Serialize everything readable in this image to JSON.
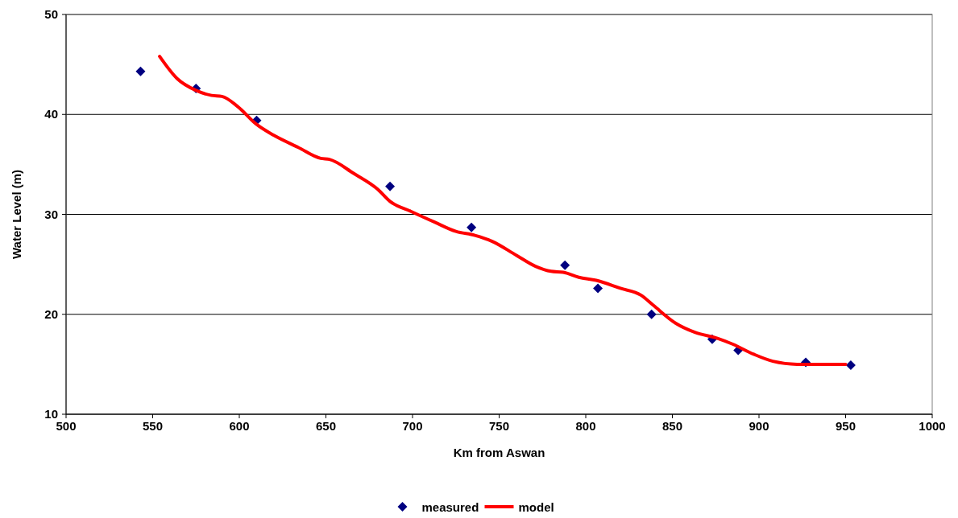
{
  "chart_data": {
    "type": "scatter",
    "xlabel": "Km from Aswan",
    "ylabel": "Water Level (m)",
    "xlim": [
      500,
      1000
    ],
    "xticks": [
      500,
      550,
      600,
      650,
      700,
      750,
      800,
      850,
      900,
      950,
      1000
    ],
    "ylim": [
      10,
      50
    ],
    "yticks": [
      10,
      20,
      30,
      40,
      50
    ],
    "grid": "y",
    "legend": "bottom",
    "marker": "diamond",
    "series": [
      {
        "name": "measured",
        "color": "#000080",
        "x": [
          543,
          575,
          610,
          687,
          734,
          788,
          807,
          838,
          873,
          888,
          927,
          953
        ],
        "values": [
          44.3,
          42.6,
          39.4,
          32.8,
          28.7,
          24.9,
          22.6,
          20.0,
          17.5,
          16.4,
          15.2,
          14.9
        ]
      },
      {
        "name": "model",
        "type": "line",
        "color": "#ff0000",
        "line_style": "solid",
        "marker": "none",
        "x": [
          554,
          564,
          575,
          584,
          590,
          599,
          610,
          620,
          634,
          647,
          652,
          666,
          680,
          687,
          699,
          713,
          725,
          736,
          746,
          760,
          771,
          780,
          787,
          796,
          806,
          820,
          832,
          839,
          852,
          863,
          876,
          885,
          897,
          908,
          922,
          950
        ],
        "values": [
          45.8,
          43.6,
          42.4,
          41.9,
          41.8,
          40.8,
          39.0,
          37.9,
          36.7,
          35.6,
          35.5,
          34.1,
          32.5,
          31.3,
          30.3,
          29.2,
          28.3,
          27.9,
          27.3,
          25.9,
          24.8,
          24.3,
          24.2,
          23.7,
          23.4,
          22.6,
          21.9,
          20.9,
          19.1,
          18.2,
          17.6,
          17.0,
          16.0,
          15.3,
          15.0,
          15.0
        ]
      }
    ]
  }
}
